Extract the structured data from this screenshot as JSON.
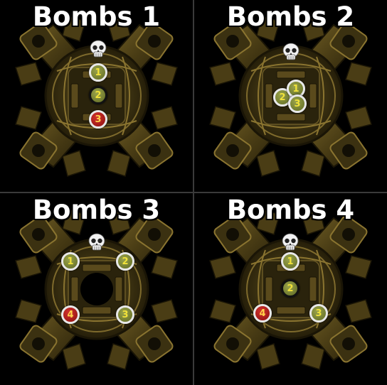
{
  "panels": [
    {
      "title": "Bombs 1",
      "markers": [
        {
          "label": "1",
          "color": "green"
        },
        {
          "label": "2",
          "color": "green"
        },
        {
          "label": "3",
          "color": "red"
        }
      ]
    },
    {
      "title": "Bombs 2",
      "markers": [
        {
          "label": "2",
          "color": "green"
        },
        {
          "label": "1",
          "color": "green"
        },
        {
          "label": "3",
          "color": "green"
        }
      ]
    },
    {
      "title": "Bombs 3",
      "markers": [
        {
          "label": "1",
          "color": "green"
        },
        {
          "label": "2",
          "color": "green"
        },
        {
          "label": "4",
          "color": "red"
        },
        {
          "label": "3",
          "color": "green"
        }
      ]
    },
    {
      "title": "Bombs 4",
      "markers": [
        {
          "label": "1",
          "color": "green"
        },
        {
          "label": "2",
          "color": "green"
        },
        {
          "label": "4",
          "color": "red"
        },
        {
          "label": "3",
          "color": "green"
        }
      ]
    }
  ],
  "colors": {
    "background": "#000000",
    "stone": "#6b5a26",
    "stone_dark": "#2a230e",
    "marker_green": "#7d8736",
    "marker_red": "#b01e1b",
    "number_yellow": "#f1e23a"
  },
  "icons": {
    "skull": "skull-icon"
  }
}
